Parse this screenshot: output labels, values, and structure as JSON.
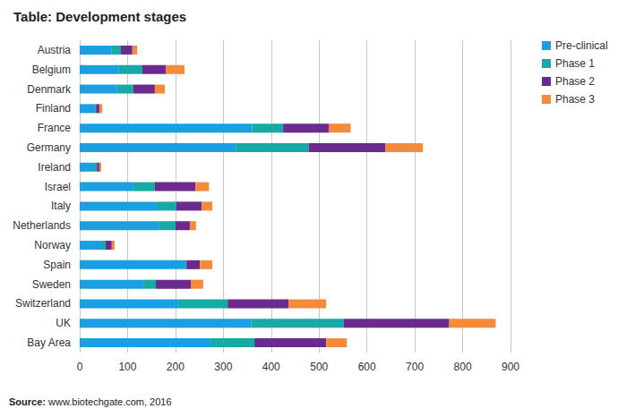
{
  "chart_data": {
    "type": "bar",
    "title": "Table: Development stages",
    "annotations": [
      "Source: www.biotechgate.com, 2016"
    ],
    "orientation": "horizontal",
    "stacked": true,
    "grid": true,
    "legend": "right",
    "categories": [
      "Austria",
      "Belgium",
      "Denmark",
      "Finland",
      "France",
      "Germany",
      "Ireland",
      "Israel",
      "Italy",
      "Netherlands",
      "Norway",
      "Spain",
      "Sweden",
      "Switzerland",
      "UK",
      "Bay Area"
    ],
    "series": [
      {
        "name": "Pre-clinical",
        "color": "#1b9fe0",
        "values": [
          67,
          82,
          77,
          32,
          360,
          326,
          30,
          112,
          161,
          165,
          45,
          221,
          133,
          206,
          358,
          273
        ]
      },
      {
        "name": "Phase 1",
        "color": "#17a9a3",
        "values": [
          19,
          49,
          35,
          2,
          65,
          152,
          6,
          45,
          41,
          35,
          9,
          2,
          26,
          103,
          194,
          92
        ]
      },
      {
        "name": "Phase 2",
        "color": "#6b2a8e",
        "values": [
          24,
          49,
          45,
          7,
          96,
          160,
          5,
          85,
          53,
          30,
          13,
          28,
          73,
          127,
          220,
          150
        ]
      },
      {
        "name": "Phase 3",
        "color": "#f28c3c",
        "values": [
          10,
          39,
          21,
          6,
          45,
          79,
          4,
          28,
          22,
          13,
          6,
          26,
          26,
          79,
          97,
          43
        ]
      }
    ],
    "xlim": [
      0,
      900
    ],
    "xticks": [
      0,
      100,
      200,
      300,
      400,
      500,
      600,
      700,
      800,
      900
    ]
  }
}
